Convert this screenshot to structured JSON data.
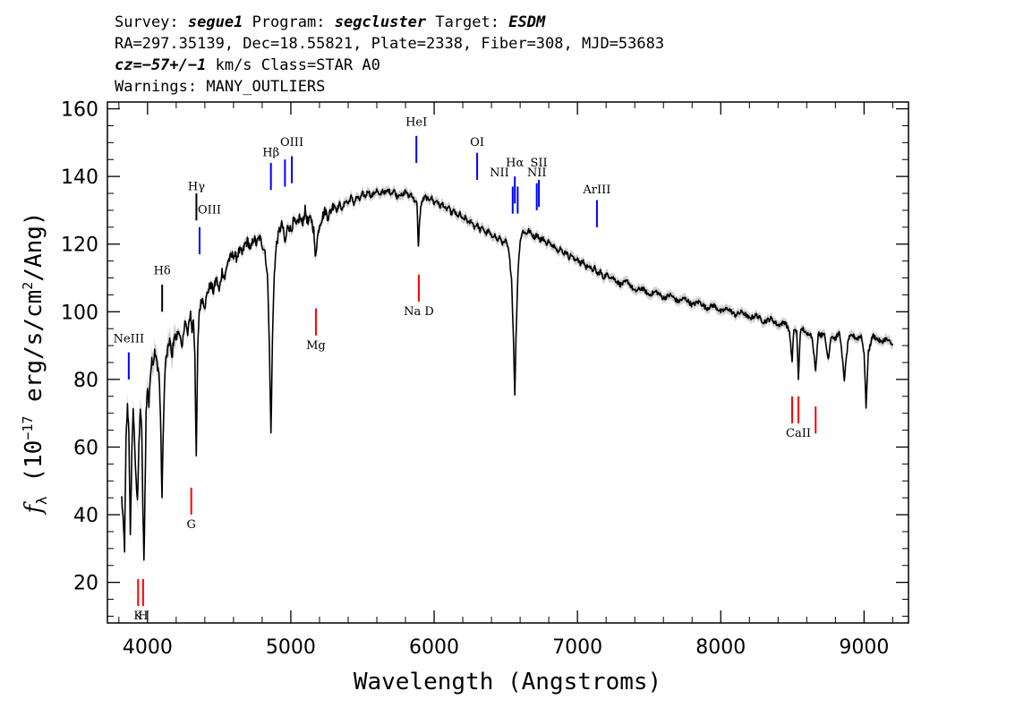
{
  "header": {
    "line1": {
      "survey_label": "Survey:",
      "survey": "segue1",
      "program_label": "Program:",
      "program": "segcluster",
      "target_label": "Target:",
      "target": "ESDM"
    },
    "line2": "RA=297.35139, Dec=18.55821, Plate=2338, Fiber=308, MJD=53683",
    "line3": {
      "cz": "cz=−57+/−1",
      "rest": " km/s Class=STAR A0"
    },
    "line4": "Warnings: MANY_OUTLIERS"
  },
  "chart_data": {
    "type": "line",
    "xlabel": "Wavelength (Angstroms)",
    "ylabel": {
      "f": "f",
      "sub": "λ",
      "pre": " (10",
      "exp1": "−17",
      "mid": " erg/s/cm",
      "exp2": "2",
      "post": "/Ang)"
    },
    "xlim": [
      3720,
      9310
    ],
    "ylim": [
      8,
      162
    ],
    "xticks": [
      4000,
      5000,
      6000,
      7000,
      8000,
      9000
    ],
    "yticks": [
      20,
      40,
      60,
      80,
      100,
      120,
      140,
      160
    ],
    "series": [
      {
        "color": "#000000",
        "error_band_color": "#bbbbbb",
        "points": [
          [
            3820,
            45
          ],
          [
            3830,
            38
          ],
          [
            3840,
            30
          ],
          [
            3850,
            62
          ],
          [
            3860,
            72
          ],
          [
            3870,
            65
          ],
          [
            3880,
            33
          ],
          [
            3890,
            58
          ],
          [
            3900,
            72
          ],
          [
            3910,
            60
          ],
          [
            3920,
            50
          ],
          [
            3930,
            45
          ],
          [
            3940,
            60
          ],
          [
            3950,
            72
          ],
          [
            3960,
            64
          ],
          [
            3968,
            40
          ],
          [
            3975,
            26
          ],
          [
            3982,
            45
          ],
          [
            3990,
            70
          ],
          [
            4000,
            78
          ],
          [
            4010,
            72
          ],
          [
            4020,
            82
          ],
          [
            4030,
            86
          ],
          [
            4040,
            85
          ],
          [
            4050,
            88
          ],
          [
            4060,
            86
          ],
          [
            4070,
            84
          ],
          [
            4080,
            82
          ],
          [
            4090,
            70
          ],
          [
            4101,
            45
          ],
          [
            4112,
            70
          ],
          [
            4125,
            85
          ],
          [
            4140,
            88
          ],
          [
            4155,
            92
          ],
          [
            4170,
            86
          ],
          [
            4185,
            93
          ],
          [
            4200,
            92
          ],
          [
            4220,
            95
          ],
          [
            4240,
            88
          ],
          [
            4260,
            98
          ],
          [
            4280,
            93
          ],
          [
            4300,
            100
          ],
          [
            4310,
            94
          ],
          [
            4320,
            98
          ],
          [
            4330,
            88
          ],
          [
            4340,
            56
          ],
          [
            4350,
            88
          ],
          [
            4360,
            100
          ],
          [
            4380,
            104
          ],
          [
            4400,
            102
          ],
          [
            4420,
            106
          ],
          [
            4440,
            108
          ],
          [
            4460,
            106
          ],
          [
            4480,
            110
          ],
          [
            4500,
            106
          ],
          [
            4520,
            112
          ],
          [
            4540,
            110
          ],
          [
            4560,
            115
          ],
          [
            4580,
            116
          ],
          [
            4600,
            117
          ],
          [
            4620,
            116
          ],
          [
            4640,
            118
          ],
          [
            4660,
            117
          ],
          [
            4680,
            120
          ],
          [
            4700,
            121
          ],
          [
            4720,
            118
          ],
          [
            4740,
            122
          ],
          [
            4760,
            120
          ],
          [
            4780,
            122
          ],
          [
            4800,
            120
          ],
          [
            4820,
            118
          ],
          [
            4840,
            108
          ],
          [
            4850,
            90
          ],
          [
            4861,
            64
          ],
          [
            4872,
            92
          ],
          [
            4885,
            112
          ],
          [
            4900,
            120
          ],
          [
            4920,
            124
          ],
          [
            4940,
            126
          ],
          [
            4960,
            120
          ],
          [
            4980,
            126
          ],
          [
            5000,
            124
          ],
          [
            5020,
            127
          ],
          [
            5040,
            125
          ],
          [
            5060,
            128
          ],
          [
            5080,
            126
          ],
          [
            5100,
            130
          ],
          [
            5120,
            126
          ],
          [
            5140,
            128
          ],
          [
            5160,
            124
          ],
          [
            5170,
            116
          ],
          [
            5180,
            120
          ],
          [
            5200,
            126
          ],
          [
            5220,
            128
          ],
          [
            5240,
            130
          ],
          [
            5260,
            128
          ],
          [
            5280,
            130
          ],
          [
            5300,
            132
          ],
          [
            5320,
            130
          ],
          [
            5340,
            132
          ],
          [
            5360,
            130
          ],
          [
            5380,
            133
          ],
          [
            5400,
            132
          ],
          [
            5420,
            134
          ],
          [
            5440,
            132
          ],
          [
            5460,
            134
          ],
          [
            5480,
            133
          ],
          [
            5500,
            135
          ],
          [
            5520,
            134
          ],
          [
            5540,
            136
          ],
          [
            5560,
            134
          ],
          [
            5580,
            135
          ],
          [
            5600,
            136
          ],
          [
            5620,
            134
          ],
          [
            5640,
            136
          ],
          [
            5660,
            135
          ],
          [
            5680,
            136
          ],
          [
            5700,
            135
          ],
          [
            5720,
            136
          ],
          [
            5740,
            134
          ],
          [
            5760,
            135
          ],
          [
            5780,
            134
          ],
          [
            5800,
            136
          ],
          [
            5820,
            134
          ],
          [
            5840,
            135
          ],
          [
            5860,
            133
          ],
          [
            5880,
            132
          ],
          [
            5890,
            119
          ],
          [
            5896,
            125
          ],
          [
            5906,
            131
          ],
          [
            5920,
            133
          ],
          [
            5940,
            134
          ],
          [
            5960,
            133
          ],
          [
            5980,
            134
          ],
          [
            6000,
            132
          ],
          [
            6020,
            133
          ],
          [
            6040,
            131
          ],
          [
            6060,
            132
          ],
          [
            6080,
            130
          ],
          [
            6100,
            131
          ],
          [
            6120,
            129
          ],
          [
            6140,
            130
          ],
          [
            6160,
            128
          ],
          [
            6180,
            129
          ],
          [
            6200,
            127
          ],
          [
            6220,
            128
          ],
          [
            6240,
            126
          ],
          [
            6260,
            127
          ],
          [
            6280,
            125
          ],
          [
            6300,
            126
          ],
          [
            6320,
            124
          ],
          [
            6340,
            125
          ],
          [
            6360,
            123
          ],
          [
            6380,
            124
          ],
          [
            6400,
            122
          ],
          [
            6420,
            123
          ],
          [
            6440,
            121
          ],
          [
            6460,
            122
          ],
          [
            6480,
            120
          ],
          [
            6500,
            121
          ],
          [
            6520,
            118
          ],
          [
            6540,
            110
          ],
          [
            6555,
            90
          ],
          [
            6563,
            75
          ],
          [
            6571,
            92
          ],
          [
            6585,
            112
          ],
          [
            6600,
            121
          ],
          [
            6620,
            124
          ],
          [
            6640,
            123
          ],
          [
            6660,
            124
          ],
          [
            6680,
            123
          ],
          [
            6700,
            122
          ],
          [
            6720,
            123
          ],
          [
            6740,
            121
          ],
          [
            6760,
            122
          ],
          [
            6780,
            120
          ],
          [
            6800,
            121
          ],
          [
            6820,
            119
          ],
          [
            6840,
            120
          ],
          [
            6860,
            118
          ],
          [
            6880,
            119
          ],
          [
            6900,
            117
          ],
          [
            6920,
            118
          ],
          [
            6940,
            116
          ],
          [
            6960,
            117
          ],
          [
            6980,
            115
          ],
          [
            7000,
            116
          ],
          [
            7020,
            114
          ],
          [
            7040,
            115
          ],
          [
            7060,
            113
          ],
          [
            7080,
            114
          ],
          [
            7100,
            112
          ],
          [
            7120,
            113
          ],
          [
            7140,
            111
          ],
          [
            7160,
            112
          ],
          [
            7180,
            110
          ],
          [
            7200,
            111
          ],
          [
            7250,
            110
          ],
          [
            7300,
            108
          ],
          [
            7350,
            109
          ],
          [
            7400,
            106
          ],
          [
            7450,
            107
          ],
          [
            7500,
            105
          ],
          [
            7550,
            106
          ],
          [
            7600,
            104
          ],
          [
            7650,
            105
          ],
          [
            7700,
            103
          ],
          [
            7750,
            104
          ],
          [
            7800,
            102
          ],
          [
            7850,
            103
          ],
          [
            7900,
            101
          ],
          [
            7950,
            102
          ],
          [
            8000,
            100
          ],
          [
            8050,
            101
          ],
          [
            8100,
            99
          ],
          [
            8150,
            100
          ],
          [
            8200,
            98
          ],
          [
            8250,
            99
          ],
          [
            8300,
            97
          ],
          [
            8350,
            98
          ],
          [
            8400,
            96
          ],
          [
            8450,
            97
          ],
          [
            8480,
            94
          ],
          [
            8498,
            85
          ],
          [
            8510,
            95
          ],
          [
            8530,
            94
          ],
          [
            8542,
            80
          ],
          [
            8555,
            94
          ],
          [
            8575,
            95
          ],
          [
            8600,
            93
          ],
          [
            8620,
            94
          ],
          [
            8640,
            92
          ],
          [
            8662,
            82
          ],
          [
            8680,
            94
          ],
          [
            8700,
            93
          ],
          [
            8720,
            94
          ],
          [
            8750,
            86
          ],
          [
            8770,
            93
          ],
          [
            8800,
            92
          ],
          [
            8830,
            94
          ],
          [
            8862,
            80
          ],
          [
            8890,
            92
          ],
          [
            8920,
            93
          ],
          [
            8950,
            92
          ],
          [
            8980,
            93
          ],
          [
            9000,
            88
          ],
          [
            9014,
            72
          ],
          [
            9030,
            88
          ],
          [
            9060,
            93
          ],
          [
            9090,
            92
          ],
          [
            9120,
            91
          ],
          [
            9150,
            92
          ],
          [
            9180,
            91
          ],
          [
            9200,
            90
          ]
        ]
      }
    ],
    "annotations": [
      {
        "label": "NeIII",
        "x": 3869,
        "y1": 80,
        "y2": 88,
        "color": "#0000ff",
        "label_y": 91,
        "pos": "above"
      },
      {
        "label": "Hδ",
        "x": 4102,
        "y1": 100,
        "y2": 108,
        "color": "#000000",
        "label_y": 111,
        "pos": "above"
      },
      {
        "label": "Hγ",
        "x": 4341,
        "y1": 127,
        "y2": 135,
        "color": "#000000",
        "label_y": 136,
        "pos": "above"
      },
      {
        "label": "OIII",
        "x": 4363,
        "y1": 117,
        "y2": 125,
        "color": "#0000ff",
        "label_y": 129,
        "pos": "right"
      },
      {
        "label": "Hβ",
        "x": 4861,
        "y1": 136,
        "y2": 144,
        "color": "#0000ff",
        "label_y": 146,
        "pos": "above"
      },
      {
        "label": "",
        "x": 4959,
        "y1": 137,
        "y2": 145,
        "color": "#0000ff"
      },
      {
        "label": "OIII",
        "x": 5007,
        "y1": 138,
        "y2": 146,
        "color": "#0000ff",
        "label_y": 149,
        "pos": "above"
      },
      {
        "label": "Mg",
        "x": 5175,
        "y1": 93,
        "y2": 101,
        "color": "#ff0000",
        "label_y": 89,
        "pos": "below"
      },
      {
        "label": "HeI",
        "x": 5876,
        "y1": 144,
        "y2": 152,
        "color": "#0000ff",
        "label_y": 155,
        "pos": "above"
      },
      {
        "label": "Na D",
        "x": 5893,
        "y1": 103,
        "y2": 111,
        "color": "#ff0000",
        "label_y": 99,
        "pos": "below"
      },
      {
        "label": "OI",
        "x": 6300,
        "y1": 139,
        "y2": 147,
        "color": "#0000ff",
        "label_y": 149,
        "pos": "above"
      },
      {
        "label": "NII",
        "x": 6548,
        "y1": 129,
        "y2": 137,
        "color": "#0000ff",
        "label_y": 140,
        "pos": "left"
      },
      {
        "label": "Hα",
        "x": 6563,
        "y1": 132,
        "y2": 140,
        "color": "#0000ff",
        "label_y": 143,
        "pos": "above"
      },
      {
        "label": "",
        "x": 6583,
        "y1": 129,
        "y2": 137,
        "color": "#0000ff"
      },
      {
        "label": "NII",
        "x": 6716,
        "y1": 130,
        "y2": 138,
        "color": "#0000ff",
        "label_y": 140,
        "pos": "above"
      },
      {
        "label": "SII",
        "x": 6731,
        "y1": 131,
        "y2": 139,
        "color": "#0000ff",
        "label_y": 143,
        "pos": "above"
      },
      {
        "label": "ArIII",
        "x": 7136,
        "y1": 125,
        "y2": 133,
        "color": "#0000ff",
        "label_y": 135,
        "pos": "above"
      },
      {
        "label": "K",
        "x": 3934,
        "y1": 13,
        "y2": 21,
        "color": "#ff0000",
        "label_y": 9,
        "pos": "below"
      },
      {
        "label": "H",
        "x": 3969,
        "y1": 13,
        "y2": 21,
        "color": "#ff0000",
        "label_y": 9,
        "pos": "below"
      },
      {
        "label": "G",
        "x": 4305,
        "y1": 40,
        "y2": 48,
        "color": "#ff0000",
        "label_y": 36,
        "pos": "below"
      },
      {
        "label": "",
        "x": 8498,
        "y1": 67,
        "y2": 75,
        "color": "#ff0000"
      },
      {
        "label": "CaII",
        "x": 8542,
        "y1": 67,
        "y2": 75,
        "color": "#ff0000",
        "label_y": 63,
        "pos": "below"
      },
      {
        "label": "",
        "x": 8662,
        "y1": 64,
        "y2": 72,
        "color": "#ff0000"
      }
    ]
  }
}
